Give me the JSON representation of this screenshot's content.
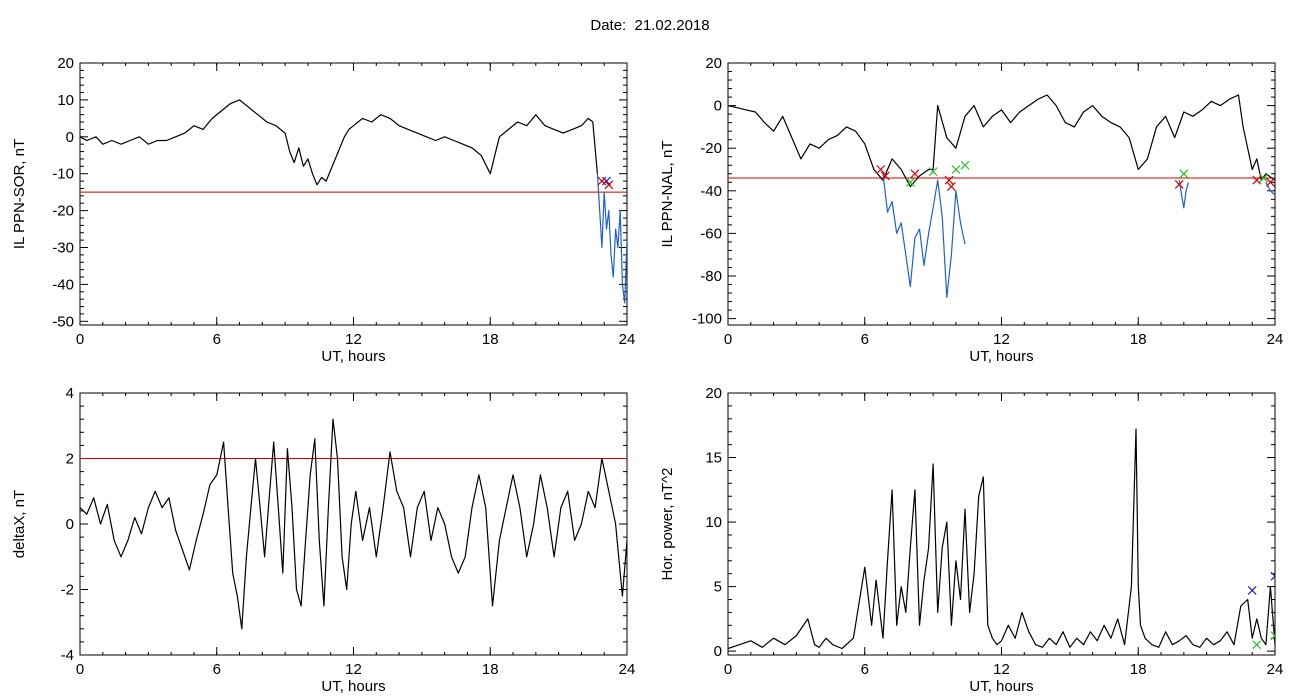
{
  "page": {
    "title": "Date:  21.02.2018"
  },
  "chart_data": [
    {
      "id": "sor",
      "type": "line",
      "title": "",
      "xlabel": "UT, hours",
      "ylabel": "IL PPN-SOR, nT",
      "xlim": [
        0,
        24
      ],
      "ylim": [
        -51,
        20
      ],
      "xticks": [
        0,
        6,
        12,
        18,
        24
      ],
      "yticks": [
        -50,
        -40,
        -30,
        -20,
        -10,
        0,
        10,
        20
      ],
      "threshold": {
        "value": -15,
        "color": "#d00000"
      },
      "series": [
        {
          "color": "#000000",
          "x": [
            0,
            0.3,
            0.7,
            1,
            1.4,
            1.8,
            2.2,
            2.6,
            3,
            3.4,
            3.8,
            4.2,
            4.6,
            5,
            5.4,
            5.8,
            6.2,
            6.6,
            7,
            7.4,
            7.8,
            8.2,
            8.6,
            9,
            9.2,
            9.4,
            9.6,
            9.8,
            10,
            10.2,
            10.4,
            10.6,
            10.8,
            11,
            11.2,
            11.4,
            11.6,
            11.8,
            12,
            12.4,
            12.8,
            13.2,
            13.6,
            14,
            14.4,
            14.8,
            15.2,
            15.6,
            16,
            16.4,
            16.8,
            17.2,
            17.6,
            18,
            18.2,
            18.4,
            18.8,
            19.2,
            19.6,
            20,
            20.4,
            20.8,
            21.2,
            21.6,
            22,
            22.3,
            22.5,
            22.7
          ],
          "y": [
            0,
            -1,
            0,
            -2,
            -1,
            -2,
            -1,
            0,
            -2,
            -1,
            -1,
            0,
            1,
            3,
            2,
            5,
            7,
            9,
            10,
            8,
            6,
            4,
            3,
            1,
            -4,
            -7,
            -3,
            -8,
            -6,
            -10,
            -13,
            -11,
            -12,
            -9,
            -6,
            -3,
            0,
            2,
            3,
            5,
            4,
            6,
            5,
            3,
            2,
            1,
            0,
            -1,
            0,
            -1,
            -2,
            -3,
            -5,
            -10,
            -5,
            0,
            2,
            4,
            3,
            6,
            3,
            2,
            1,
            2,
            3,
            5,
            4,
            -10
          ]
        },
        {
          "color": "#1f5fd6",
          "x": [
            22.7,
            22.8,
            22.9,
            23,
            23.1,
            23.2,
            23.3,
            23.4,
            23.5,
            23.6,
            23.7,
            23.8,
            23.9,
            24
          ],
          "y": [
            -10,
            -20,
            -30,
            -15,
            -25,
            -20,
            -32,
            -38,
            -25,
            -30,
            -20,
            -40,
            -45,
            -28
          ]
        }
      ],
      "markers": [
        {
          "x": 22.9,
          "y": -12,
          "color": "#d00000"
        },
        {
          "x": 23.1,
          "y": -12,
          "color": "#2020d0"
        },
        {
          "x": 23.2,
          "y": -13,
          "color": "#d00000"
        }
      ]
    },
    {
      "id": "nal",
      "type": "line",
      "title": "",
      "xlabel": "UT, hours",
      "ylabel": "IL PPN-NAL, nT",
      "xlim": [
        0,
        24
      ],
      "ylim": [
        -103,
        20
      ],
      "xticks": [
        0,
        6,
        12,
        18,
        24
      ],
      "yticks": [
        -100,
        -80,
        -60,
        -40,
        -20,
        0,
        20
      ],
      "threshold": {
        "value": -34,
        "color": "#d00000"
      },
      "series": [
        {
          "color": "#000000",
          "x": [
            0,
            0.4,
            0.8,
            1.2,
            1.6,
            2,
            2.4,
            2.8,
            3.2,
            3.6,
            4,
            4.4,
            4.8,
            5.2,
            5.6,
            6,
            6.4,
            6.8,
            7.2,
            7.6,
            8,
            8.4,
            8.8,
            9,
            9.2,
            9.6,
            10,
            10.4,
            10.8,
            11.2,
            11.6,
            12,
            12.4,
            12.8,
            13.2,
            13.6,
            14,
            14.4,
            14.8,
            15.2,
            15.6,
            16,
            16.4,
            16.8,
            17.2,
            17.6,
            18,
            18.4,
            18.8,
            19.2,
            19.6,
            20,
            20.4,
            20.8,
            21.2,
            21.6,
            22,
            22.4,
            22.6,
            22.8,
            23,
            23.2,
            23.4,
            23.6,
            24
          ],
          "y": [
            0,
            -1,
            -2,
            -3,
            -8,
            -12,
            -5,
            -15,
            -25,
            -18,
            -20,
            -16,
            -14,
            -10,
            -12,
            -18,
            -30,
            -35,
            -25,
            -30,
            -38,
            -33,
            -30,
            -30,
            0,
            -15,
            -20,
            -5,
            0,
            -10,
            -5,
            -2,
            -8,
            -3,
            0,
            3,
            5,
            0,
            -8,
            -10,
            -3,
            0,
            -5,
            -8,
            -10,
            -15,
            -30,
            -25,
            -10,
            -5,
            -15,
            -3,
            -5,
            -2,
            2,
            0,
            3,
            5,
            -10,
            -20,
            -30,
            -25,
            -35,
            -32,
            -35
          ]
        },
        {
          "color": "#1f5fd6",
          "x": [
            6.8,
            7,
            7.2,
            7.4,
            7.6,
            7.8,
            8,
            8.2,
            8.4,
            8.6,
            8.8,
            9,
            9.2,
            9.4,
            9.6,
            9.8,
            10,
            10.2,
            10.4
          ],
          "y": [
            -32,
            -50,
            -45,
            -60,
            -55,
            -70,
            -85,
            -62,
            -58,
            -75,
            -60,
            -48,
            -35,
            -52,
            -90,
            -70,
            -40,
            -55,
            -65
          ]
        },
        {
          "color": "#1f5fd6",
          "x": [
            19.8,
            19.9,
            20,
            20.1,
            20.2
          ],
          "y": [
            -35,
            -42,
            -48,
            -40,
            -36
          ]
        },
        {
          "color": "#1f5fd6",
          "x": [
            23.6,
            23.8,
            24
          ],
          "y": [
            -36,
            -40,
            -42
          ]
        }
      ],
      "markers": [
        {
          "x": 6.7,
          "y": -30,
          "color": "#d00000"
        },
        {
          "x": 6.9,
          "y": -33,
          "color": "#d00000"
        },
        {
          "x": 8.0,
          "y": -36,
          "color": "#20c020"
        },
        {
          "x": 8.2,
          "y": -32,
          "color": "#d00000"
        },
        {
          "x": 9.0,
          "y": -31,
          "color": "#20c020"
        },
        {
          "x": 9.7,
          "y": -35,
          "color": "#d00000"
        },
        {
          "x": 9.8,
          "y": -38,
          "color": "#d00000"
        },
        {
          "x": 10.0,
          "y": -30,
          "color": "#20c020"
        },
        {
          "x": 10.4,
          "y": -28,
          "color": "#20c020"
        },
        {
          "x": 19.8,
          "y": -37,
          "color": "#d00000"
        },
        {
          "x": 20.0,
          "y": -32,
          "color": "#20c020"
        },
        {
          "x": 23.2,
          "y": -35,
          "color": "#d00000"
        },
        {
          "x": 23.5,
          "y": -34,
          "color": "#20c020"
        },
        {
          "x": 23.8,
          "y": -36,
          "color": "#d00000"
        }
      ]
    },
    {
      "id": "deltax",
      "type": "line",
      "title": "",
      "xlabel": "UT, hours",
      "ylabel": "deltaX, nT",
      "xlim": [
        0,
        24
      ],
      "ylim": [
        -4,
        4
      ],
      "xticks": [
        0,
        6,
        12,
        18,
        24
      ],
      "yticks": [
        -4,
        -2,
        0,
        2,
        4
      ],
      "threshold": {
        "value": 2,
        "color": "#d00000"
      },
      "series": [
        {
          "color": "#000000",
          "x": [
            0,
            0.3,
            0.6,
            0.9,
            1.2,
            1.5,
            1.8,
            2.1,
            2.4,
            2.7,
            3,
            3.3,
            3.6,
            3.9,
            4.2,
            4.5,
            4.8,
            5.1,
            5.4,
            5.7,
            6,
            6.3,
            6.5,
            6.7,
            6.9,
            7.1,
            7.3,
            7.5,
            7.7,
            7.9,
            8.1,
            8.3,
            8.5,
            8.7,
            8.9,
            9.1,
            9.3,
            9.5,
            9.7,
            9.9,
            10.1,
            10.3,
            10.5,
            10.7,
            10.9,
            11.1,
            11.3,
            11.5,
            11.7,
            11.9,
            12.1,
            12.4,
            12.7,
            13,
            13.3,
            13.6,
            13.9,
            14.2,
            14.5,
            14.8,
            15.1,
            15.4,
            15.7,
            16,
            16.3,
            16.6,
            16.9,
            17.2,
            17.5,
            17.8,
            18.1,
            18.4,
            18.7,
            19,
            19.3,
            19.6,
            19.9,
            20.2,
            20.5,
            20.8,
            21.1,
            21.4,
            21.7,
            22,
            22.3,
            22.6,
            22.9,
            23.2,
            23.5,
            23.8,
            24
          ],
          "y": [
            0.5,
            0.3,
            0.8,
            0,
            0.6,
            -0.5,
            -1,
            -0.5,
            0.2,
            -0.3,
            0.5,
            1,
            0.5,
            0.8,
            -0.2,
            -0.8,
            -1.4,
            -0.5,
            0.3,
            1.2,
            1.5,
            2.5,
            0.5,
            -1.5,
            -2.2,
            -3.2,
            -1,
            0.5,
            2,
            0.5,
            -1,
            0.8,
            2.5,
            0.5,
            -1.5,
            2.3,
            0.5,
            -2,
            -2.5,
            -0.5,
            1.5,
            2.6,
            -0.5,
            -2.5,
            0.5,
            3.2,
            2,
            -1,
            -2,
            0,
            1,
            -0.5,
            0.5,
            -1,
            0.5,
            2.2,
            1,
            0.5,
            -1,
            0.5,
            1,
            -0.5,
            0.5,
            0,
            -1,
            -1.5,
            -1,
            0.5,
            1.5,
            0.5,
            -2.5,
            -0.5,
            0.5,
            1.5,
            0.5,
            -1,
            0,
            1.5,
            0.5,
            -1,
            0.5,
            1,
            -0.5,
            0,
            1,
            0.5,
            2,
            1,
            0,
            -2.2,
            -0.5
          ]
        }
      ],
      "markers": []
    },
    {
      "id": "power",
      "type": "line",
      "title": "",
      "xlabel": "UT, hours",
      "ylabel": "Hor. power, nT^2",
      "xlim": [
        0,
        24
      ],
      "ylim": [
        -0.3,
        20
      ],
      "xticks": [
        0,
        6,
        12,
        18,
        24
      ],
      "yticks": [
        0,
        5,
        10,
        15,
        20
      ],
      "threshold": null,
      "series": [
        {
          "color": "#000000",
          "x": [
            0,
            0.5,
            1,
            1.5,
            2,
            2.5,
            3,
            3.5,
            3.8,
            4,
            4.3,
            4.6,
            5,
            5.5,
            6,
            6.3,
            6.5,
            6.8,
            7,
            7.2,
            7.4,
            7.6,
            7.8,
            8,
            8.2,
            8.4,
            8.6,
            8.8,
            9,
            9.2,
            9.4,
            9.6,
            9.8,
            10,
            10.2,
            10.4,
            10.6,
            10.8,
            11,
            11.2,
            11.4,
            11.6,
            11.8,
            12,
            12.3,
            12.6,
            12.9,
            13.2,
            13.5,
            13.8,
            14.1,
            14.4,
            14.7,
            15,
            15.3,
            15.6,
            15.9,
            16.2,
            16.5,
            16.8,
            17.1,
            17.4,
            17.7,
            17.9,
            18,
            18.1,
            18.3,
            18.6,
            18.9,
            19.2,
            19.5,
            19.8,
            20.1,
            20.4,
            20.7,
            21,
            21.3,
            21.6,
            21.9,
            22.2,
            22.5,
            22.8,
            23,
            23.2,
            23.4,
            23.6,
            23.8,
            24
          ],
          "y": [
            0.2,
            0.5,
            0.8,
            0.3,
            1,
            0.5,
            1.2,
            2.5,
            0.5,
            0.3,
            1,
            0.5,
            0.2,
            1,
            6.5,
            2,
            5.5,
            1,
            7,
            12.5,
            2,
            5,
            3,
            8,
            12.5,
            2,
            5.5,
            8,
            14.5,
            3,
            8,
            10,
            2,
            7,
            4,
            11,
            3,
            6,
            12,
            13.5,
            2,
            1,
            0.5,
            0.8,
            2,
            1,
            3,
            1.5,
            0.5,
            0.3,
            1,
            0.5,
            1.5,
            0.3,
            1,
            0.5,
            1.5,
            0.8,
            2,
            1,
            2.5,
            0.5,
            5,
            17.2,
            5,
            2,
            1,
            0.5,
            0.3,
            1.5,
            0.5,
            0.8,
            1.2,
            0.5,
            0.3,
            1,
            0.5,
            0.8,
            1.5,
            0.5,
            3.5,
            4,
            1,
            2.5,
            1,
            0.5,
            5,
            0.5
          ]
        }
      ],
      "markers": [
        {
          "x": 23.0,
          "y": 4.7,
          "color": "#2020d0"
        },
        {
          "x": 24.0,
          "y": 5.8,
          "color": "#2020d0"
        },
        {
          "x": 23.2,
          "y": 0.5,
          "color": "#20c020"
        },
        {
          "x": 24.0,
          "y": 1.2,
          "color": "#20c020"
        }
      ]
    }
  ]
}
